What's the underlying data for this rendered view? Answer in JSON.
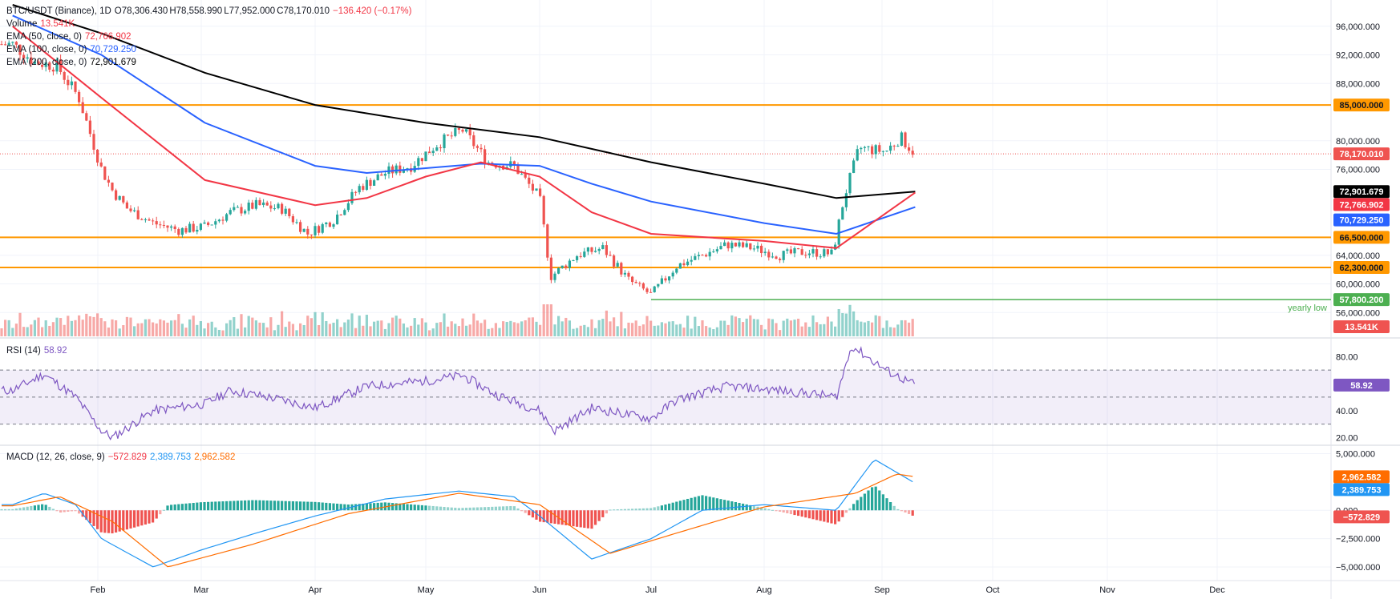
{
  "header": {
    "symbol": "BTC/USDT (Binance), 1D",
    "open": "O78,306.430",
    "high": "H78,558.990",
    "low": "L77,952.000",
    "close": "C78,170.010",
    "change": "−136.420 (−0.17%)"
  },
  "legend": {
    "volume_label": "Volume",
    "volume_value": "13.541K",
    "ema50_label": "EMA (50, close, 0)",
    "ema50_value": "72,766.902",
    "ema100_label": "EMA (100, close, 0)",
    "ema100_value": "70,729.250",
    "ema200_label": "EMA (200, close, 0)",
    "ema200_value": "72,901.679",
    "rsi_label": "RSI (14)",
    "rsi_value": "58.92",
    "macd_label": "MACD (12, 26, close, 9)",
    "macd_hist": "−572.829",
    "macd_line": "2,389.753",
    "macd_signal": "2,962.582"
  },
  "colors": {
    "up": "#26a69a",
    "down": "#ef5350",
    "ema50": "#f23645",
    "ema100": "#2962ff",
    "ema200": "#000000",
    "level": "#ff9800",
    "yearly_low": "#4caf50",
    "rsi": "#7e57c2",
    "macd": "#2196f3",
    "signal": "#ff6d00"
  },
  "chart_data": [
    {
      "type": "line",
      "name": "BTC/USDT price",
      "x_axis_labels": [
        "Feb",
        "Mar",
        "Apr",
        "May",
        "Jun",
        "Jul",
        "Aug",
        "Sep",
        "Oct",
        "Nov",
        "Dec"
      ],
      "y_ticks": [
        "96,000.000",
        "92,000.000",
        "88,000.000",
        "80,000.000",
        "76,000.000",
        "64,000.000",
        "60,000.000",
        "56,000.000"
      ],
      "ylim": [
        52000,
        99000
      ],
      "ohlc_close_approx": [
        [
          "Jan 5",
          93500
        ],
        [
          "Jan 12",
          91000
        ],
        [
          "Jan 19",
          90500
        ],
        [
          "Jan 26",
          86000
        ],
        [
          "Feb 2",
          76000
        ],
        [
          "Feb 5",
          73000
        ],
        [
          "Feb 9",
          70500
        ],
        [
          "Feb 16",
          68500
        ],
        [
          "Feb 23",
          67500
        ],
        [
          "Mar 2",
          68000
        ],
        [
          "Mar 9",
          70000
        ],
        [
          "Mar 16",
          71000
        ],
        [
          "Mar 23",
          70500
        ],
        [
          "Mar 30",
          67000
        ],
        [
          "Apr 6",
          69000
        ],
        [
          "Apr 13",
          73500
        ],
        [
          "Apr 20",
          75500
        ],
        [
          "Apr 27",
          76500
        ],
        [
          "May 4",
          79500
        ],
        [
          "May 11",
          81500
        ],
        [
          "May 18",
          77000
        ],
        [
          "May 25",
          76500
        ],
        [
          "Jun 1",
          72000
        ],
        [
          "Jun 4",
          61000
        ],
        [
          "Jun 11",
          64000
        ],
        [
          "Jun 18",
          65000
        ],
        [
          "Jun 25",
          60500
        ],
        [
          "Jul 1",
          58500
        ],
        [
          "Jul 8",
          62500
        ],
        [
          "Jul 15",
          64000
        ],
        [
          "Jul 22",
          65500
        ],
        [
          "Jul 29",
          65000
        ],
        [
          "Aug 5",
          64000
        ],
        [
          "Aug 12",
          64500
        ],
        [
          "Aug 19",
          64200
        ],
        [
          "Aug 22",
          72000
        ],
        [
          "Aug 26",
          79000
        ],
        [
          "Sep 2",
          78500
        ],
        [
          "Sep 6",
          80500
        ],
        [
          "Sep 10",
          78170
        ]
      ],
      "ema50_approx": [
        [
          "Jan 5",
          96000
        ],
        [
          "Feb 2",
          86000
        ],
        [
          "Mar 2",
          74500
        ],
        [
          "Apr 1",
          71000
        ],
        [
          "Apr 15",
          72000
        ],
        [
          "May 1",
          75000
        ],
        [
          "May 16",
          77000
        ],
        [
          "Jun 1",
          75000
        ],
        [
          "Jun 15",
          70000
        ],
        [
          "Jul 1",
          67000
        ],
        [
          "Aug 1",
          66000
        ],
        [
          "Aug 20",
          65000
        ],
        [
          "Sep 10",
          72766.902
        ]
      ],
      "ema100_approx": [
        [
          "Jan 5",
          97500
        ],
        [
          "Feb 2",
          92000
        ],
        [
          "Mar 2",
          82500
        ],
        [
          "Apr 1",
          76500
        ],
        [
          "Apr 15",
          75500
        ],
        [
          "May 16",
          76800
        ],
        [
          "Jun 1",
          76500
        ],
        [
          "Jun 15",
          74000
        ],
        [
          "Jul 1",
          71500
        ],
        [
          "Aug 1",
          68500
        ],
        [
          "Aug 20",
          67000
        ],
        [
          "Sep 10",
          70729.25
        ]
      ],
      "ema200_approx": [
        [
          "Jan 5",
          99000
        ],
        [
          "Feb 2",
          95000
        ],
        [
          "Mar 2",
          89500
        ],
        [
          "Apr 1",
          85000
        ],
        [
          "May 1",
          82500
        ],
        [
          "Jun 1",
          80500
        ],
        [
          "Jul 1",
          77000
        ],
        [
          "Aug 1",
          74000
        ],
        [
          "Aug 20",
          72000
        ],
        [
          "Sep 10",
          72901.679
        ]
      ],
      "levels": [
        {
          "value": 85000,
          "label": "85,000.000"
        },
        {
          "value": 66500,
          "label": "66,500.000"
        },
        {
          "value": 62300,
          "label": "62,300.000"
        }
      ],
      "yearly_low": {
        "value": 57800.2,
        "label": "57,800.200",
        "text": "yearly low"
      },
      "last_price_label": "78,170.010",
      "ema200_label": "72,901.679",
      "ema50_label": "72,766.902",
      "ema100_label": "70,729.250",
      "volume_label": "13.541K"
    },
    {
      "type": "line",
      "name": "RSI (14)",
      "y_ticks": [
        "80.00",
        "40.00",
        "20.00"
      ],
      "ylim": [
        15,
        92
      ],
      "bands": [
        70,
        50,
        30
      ],
      "values_approx": [
        [
          "Jan 5",
          55
        ],
        [
          "Jan 15",
          67
        ],
        [
          "Jan 25",
          50
        ],
        [
          "Feb 2",
          25
        ],
        [
          "Feb 5",
          20
        ],
        [
          "Feb 16",
          40
        ],
        [
          "Mar 2",
          45
        ],
        [
          "Mar 9",
          55
        ],
        [
          "Mar 23",
          48
        ],
        [
          "Apr 1",
          42
        ],
        [
          "Apr 15",
          58
        ],
        [
          "May 1",
          62
        ],
        [
          "May 11",
          66
        ],
        [
          "May 20",
          52
        ],
        [
          "Jun 1",
          40
        ],
        [
          "Jun 5",
          25
        ],
        [
          "Jun 15",
          42
        ],
        [
          "Jul 1",
          34
        ],
        [
          "Jul 8",
          48
        ],
        [
          "Jul 22",
          58
        ],
        [
          "Aug 1",
          56
        ],
        [
          "Aug 15",
          52
        ],
        [
          "Aug 20",
          50
        ],
        [
          "Aug 24",
          88
        ],
        [
          "Sep 2",
          70
        ],
        [
          "Sep 10",
          58.92
        ]
      ],
      "last_label": "58.92"
    },
    {
      "type": "bar",
      "name": "MACD (12, 26, close, 9)",
      "y_ticks": [
        "5,000.000",
        "0.000",
        "−2,500.000",
        "−5,000.000"
      ],
      "ylim": [
        -6200,
        5600
      ],
      "macd_approx": [
        [
          "Jan 5",
          500
        ],
        [
          "Jan 15",
          1500
        ],
        [
          "Jan 25",
          500
        ],
        [
          "Feb 2",
          -2500
        ],
        [
          "Feb 16",
          -5000
        ],
        [
          "Mar 1",
          -3500
        ],
        [
          "Mar 16",
          -2000
        ],
        [
          "Apr 1",
          -500
        ],
        [
          "Apr 20",
          1000
        ],
        [
          "May 10",
          1700
        ],
        [
          "May 25",
          1200
        ],
        [
          "Jun 1",
          -500
        ],
        [
          "Jun 15",
          -4300
        ],
        [
          "Jul 1",
          -2500
        ],
        [
          "Jul 15",
          0
        ],
        [
          "Aug 1",
          500
        ],
        [
          "Aug 20",
          0
        ],
        [
          "Aug 30",
          4500
        ],
        [
          "Sep 10",
          2389.753
        ]
      ],
      "signal_approx": [
        [
          "Jan 5",
          400
        ],
        [
          "Jan 20",
          1200
        ],
        [
          "Feb 5",
          -1000
        ],
        [
          "Feb 20",
          -5000
        ],
        [
          "Mar 15",
          -3000
        ],
        [
          "Apr 10",
          -300
        ],
        [
          "May 10",
          1500
        ],
        [
          "Jun 1",
          500
        ],
        [
          "Jun 20",
          -3800
        ],
        [
          "Jul 5",
          -2300
        ],
        [
          "Aug 1",
          300
        ],
        [
          "Aug 25",
          1500
        ],
        [
          "Sep 5",
          3200
        ],
        [
          "Sep 10",
          2962.582
        ]
      ],
      "macd_label": "2,389.753",
      "signal_label": "2,962.582",
      "hist_label": "−572.829"
    }
  ]
}
